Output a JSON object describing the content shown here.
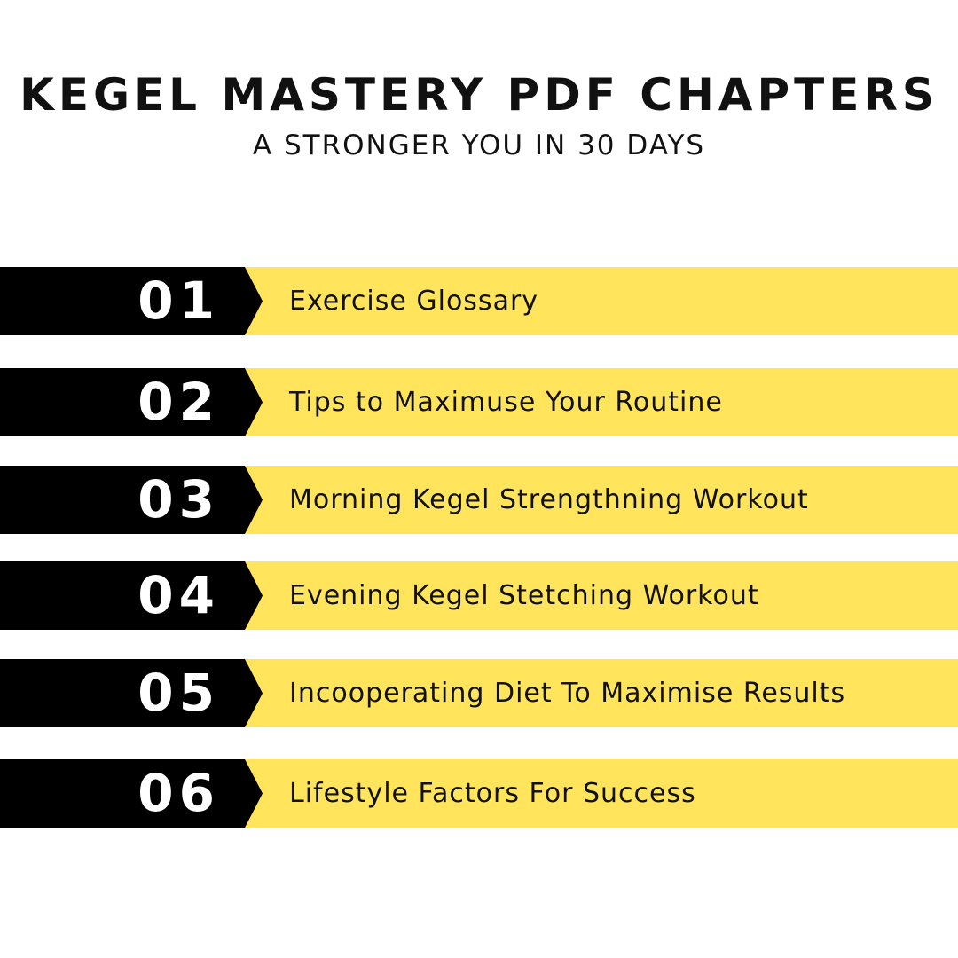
{
  "header": {
    "title": "KEGEL MASTERY PDF CHAPTERS",
    "subtitle": "A STRONGER YOU IN 30 DAYS"
  },
  "colors": {
    "accent": "#FFE45C",
    "badge": "#000000"
  },
  "chapters": [
    {
      "number": "01",
      "label": "Exercise Glossary"
    },
    {
      "number": "02",
      "label": "Tips to Maximuse Your Routine"
    },
    {
      "number": "03",
      "label": "Morning Kegel Strengthning Workout"
    },
    {
      "number": "04",
      "label": "Evening Kegel Stetching Workout"
    },
    {
      "number": "05",
      "label": "Incooperating Diet To Maximise Results"
    },
    {
      "number": "06",
      "label": "Lifestyle Factors For Success"
    }
  ]
}
